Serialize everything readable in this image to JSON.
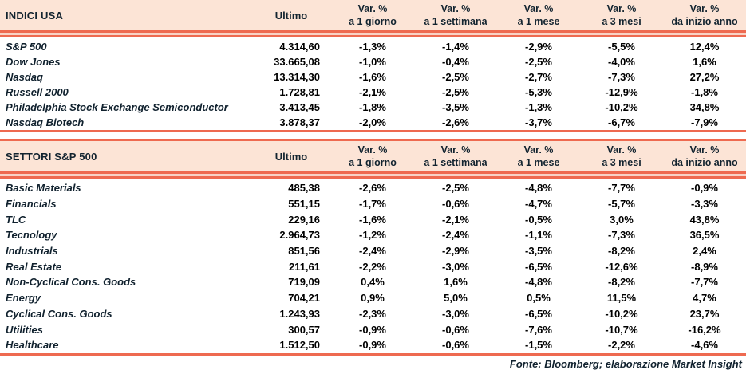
{
  "colors": {
    "header_bg": "#fce4d6",
    "rule": "#ee6a50",
    "rule_gap": "#f8d3c6",
    "text_dark": "#10212e"
  },
  "columns": {
    "ultimo": "Ultimo",
    "var_label": "Var. %",
    "subs": [
      "a 1 giorno",
      "a 1 settimana",
      "a 1 mese",
      "a 3 mesi",
      "da inizio anno"
    ]
  },
  "tables": [
    {
      "title": "INDICI USA",
      "rows": [
        {
          "name": "S&P 500",
          "ultimo": "4.314,60",
          "vars": [
            "-1,3%",
            "-1,4%",
            "-2,9%",
            "-5,5%",
            "12,4%"
          ]
        },
        {
          "name": "Dow Jones",
          "ultimo": "33.665,08",
          "vars": [
            "-1,0%",
            "-0,4%",
            "-2,5%",
            "-4,0%",
            "1,6%"
          ]
        },
        {
          "name": "Nasdaq",
          "ultimo": "13.314,30",
          "vars": [
            "-1,6%",
            "-2,5%",
            "-2,7%",
            "-7,3%",
            "27,2%"
          ]
        },
        {
          "name": "Russell 2000",
          "ultimo": "1.728,81",
          "vars": [
            "-2,1%",
            "-2,5%",
            "-5,3%",
            "-12,9%",
            "-1,8%"
          ]
        },
        {
          "name": "Philadelphia Stock Exchange Semiconductor",
          "ultimo": "3.413,45",
          "vars": [
            "-1,8%",
            "-3,5%",
            "-1,3%",
            "-10,2%",
            "34,8%"
          ]
        },
        {
          "name": "Nasdaq Biotech",
          "ultimo": "3.878,37",
          "vars": [
            "-2,0%",
            "-2,6%",
            "-3,7%",
            "-6,7%",
            "-7,9%"
          ]
        }
      ]
    },
    {
      "title": "SETTORI S&P 500",
      "rows": [
        {
          "name": "Basic Materials",
          "ultimo": "485,38",
          "vars": [
            "-2,6%",
            "-2,5%",
            "-4,8%",
            "-7,7%",
            "-0,9%"
          ]
        },
        {
          "name": "Financials",
          "ultimo": "551,15",
          "vars": [
            "-1,7%",
            "-0,6%",
            "-4,7%",
            "-5,7%",
            "-3,3%"
          ]
        },
        {
          "name": "TLC",
          "ultimo": "229,16",
          "vars": [
            "-1,6%",
            "-2,1%",
            "-0,5%",
            "3,0%",
            "43,8%"
          ]
        },
        {
          "name": "Tecnology",
          "ultimo": "2.964,73",
          "vars": [
            "-1,2%",
            "-2,4%",
            "-1,1%",
            "-7,3%",
            "36,5%"
          ]
        },
        {
          "name": "Industrials",
          "ultimo": "851,56",
          "vars": [
            "-2,4%",
            "-2,9%",
            "-3,5%",
            "-8,2%",
            "2,4%"
          ]
        },
        {
          "name": "Real Estate",
          "ultimo": "211,61",
          "vars": [
            "-2,2%",
            "-3,0%",
            "-6,5%",
            "-12,6%",
            "-8,9%"
          ]
        },
        {
          "name": "Non-Cyclical Cons. Goods",
          "ultimo": "719,09",
          "vars": [
            "0,4%",
            "1,6%",
            "-4,8%",
            "-8,2%",
            "-7,7%"
          ]
        },
        {
          "name": "Energy",
          "ultimo": "704,21",
          "vars": [
            "0,9%",
            "5,0%",
            "0,5%",
            "11,5%",
            "4,7%"
          ]
        },
        {
          "name": "Cyclical Cons. Goods",
          "ultimo": "1.243,93",
          "vars": [
            "-2,3%",
            "-3,0%",
            "-6,5%",
            "-10,2%",
            "23,7%"
          ]
        },
        {
          "name": "Utilities",
          "ultimo": "300,57",
          "vars": [
            "-0,9%",
            "-0,6%",
            "-7,6%",
            "-10,7%",
            "-16,2%"
          ]
        },
        {
          "name": "Healthcare",
          "ultimo": "1.512,50",
          "vars": [
            "-0,9%",
            "-0,6%",
            "-1,5%",
            "-2,2%",
            "-4,6%"
          ]
        }
      ]
    }
  ],
  "footer": "Fonte: Bloomberg; elaborazione Market Insight"
}
